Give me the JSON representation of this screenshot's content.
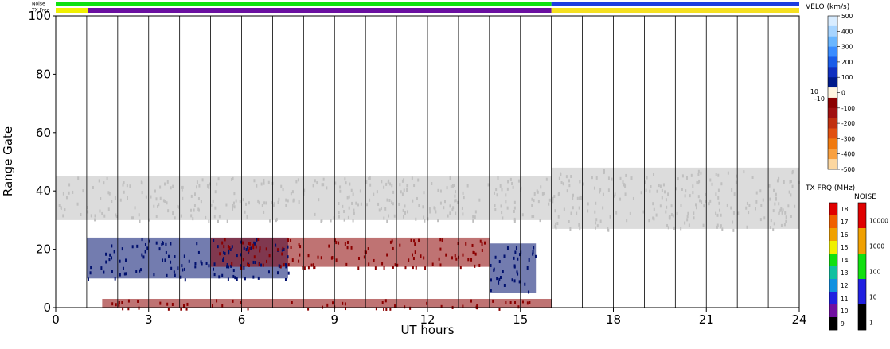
{
  "chart_data": {
    "type": "heatmap",
    "xlabel": "UT hours",
    "ylabel": "Range Gate",
    "xlim": [
      0,
      24
    ],
    "ylim": [
      0,
      100
    ],
    "x_ticks": [
      0,
      3,
      6,
      9,
      12,
      15,
      18,
      21,
      24
    ],
    "y_ticks": [
      0,
      20,
      40,
      60,
      80,
      100
    ],
    "top_strips": {
      "noise_label": "Noise",
      "txfreq_label": "TX Freq",
      "noise_segments": [
        {
          "x0": 0,
          "x1": 16,
          "color": "#10e010"
        },
        {
          "x0": 16,
          "x1": 24,
          "color": "#1d3de0"
        }
      ],
      "txfreq_segments": [
        {
          "x0": 0,
          "x1": 1.05,
          "color": "#f0f000"
        },
        {
          "x0": 1.05,
          "x1": 16,
          "color": "#6a0fa0"
        },
        {
          "x0": 16,
          "x1": 24,
          "color": "#f5e020"
        }
      ]
    },
    "regions": [
      {
        "name": "ground-scatter",
        "color": "#c0c0c0",
        "x0": 0,
        "x1": 16,
        "y0": 30,
        "y1": 45
      },
      {
        "name": "ground-scatter",
        "color": "#c0c0c0",
        "x0": 16,
        "x1": 24,
        "y0": 27,
        "y1": 48
      },
      {
        "name": "velocity-negative",
        "color": "#8b0000",
        "x0": 1.5,
        "x1": 16,
        "y0": 0,
        "y1": 3
      },
      {
        "name": "velocity-positive",
        "color": "#00106e",
        "x0": 1,
        "x1": 7.5,
        "y0": 10,
        "y1": 24
      },
      {
        "name": "velocity-negative",
        "color": "#8b0000",
        "x0": 5,
        "x1": 14,
        "y0": 14,
        "y1": 24
      },
      {
        "name": "velocity-positive",
        "color": "#00106e",
        "x0": 14,
        "x1": 15.5,
        "y0": 5,
        "y1": 22
      }
    ],
    "velo_colorbar": {
      "title": "VELO (km/s)",
      "ticks": [
        500,
        400,
        300,
        200,
        100,
        0,
        -100,
        -200,
        -300,
        -400,
        -500
      ],
      "side_labels": [
        "10",
        "-10"
      ],
      "colors": [
        "#d8ecff",
        "#a6d4ff",
        "#6ab6ff",
        "#3a8cff",
        "#1a5ce8",
        "#1030c0",
        "#001a8a",
        "#fff5e0",
        "#8b0000",
        "#a01010",
        "#c03010",
        "#e05010",
        "#f07a10",
        "#f8a040",
        "#fcd7a0"
      ]
    },
    "txfrq_colorbar": {
      "title": "TX FRQ (MHz)",
      "ticks": [
        18,
        17,
        16,
        15,
        14,
        13,
        12,
        11,
        10,
        9
      ],
      "colors": [
        "#e00000",
        "#f06000",
        "#f0a000",
        "#f0f000",
        "#10e010",
        "#10c0a0",
        "#1090e0",
        "#2020e0",
        "#7010a0",
        "#000000"
      ]
    },
    "noise_colorbar": {
      "title": "NOISE",
      "ticks": [
        "10000",
        "1000",
        "100",
        "10",
        "1"
      ],
      "colors": [
        "#e00000",
        "#f0a000",
        "#10e010",
        "#2020e0",
        "#000000"
      ]
    }
  }
}
